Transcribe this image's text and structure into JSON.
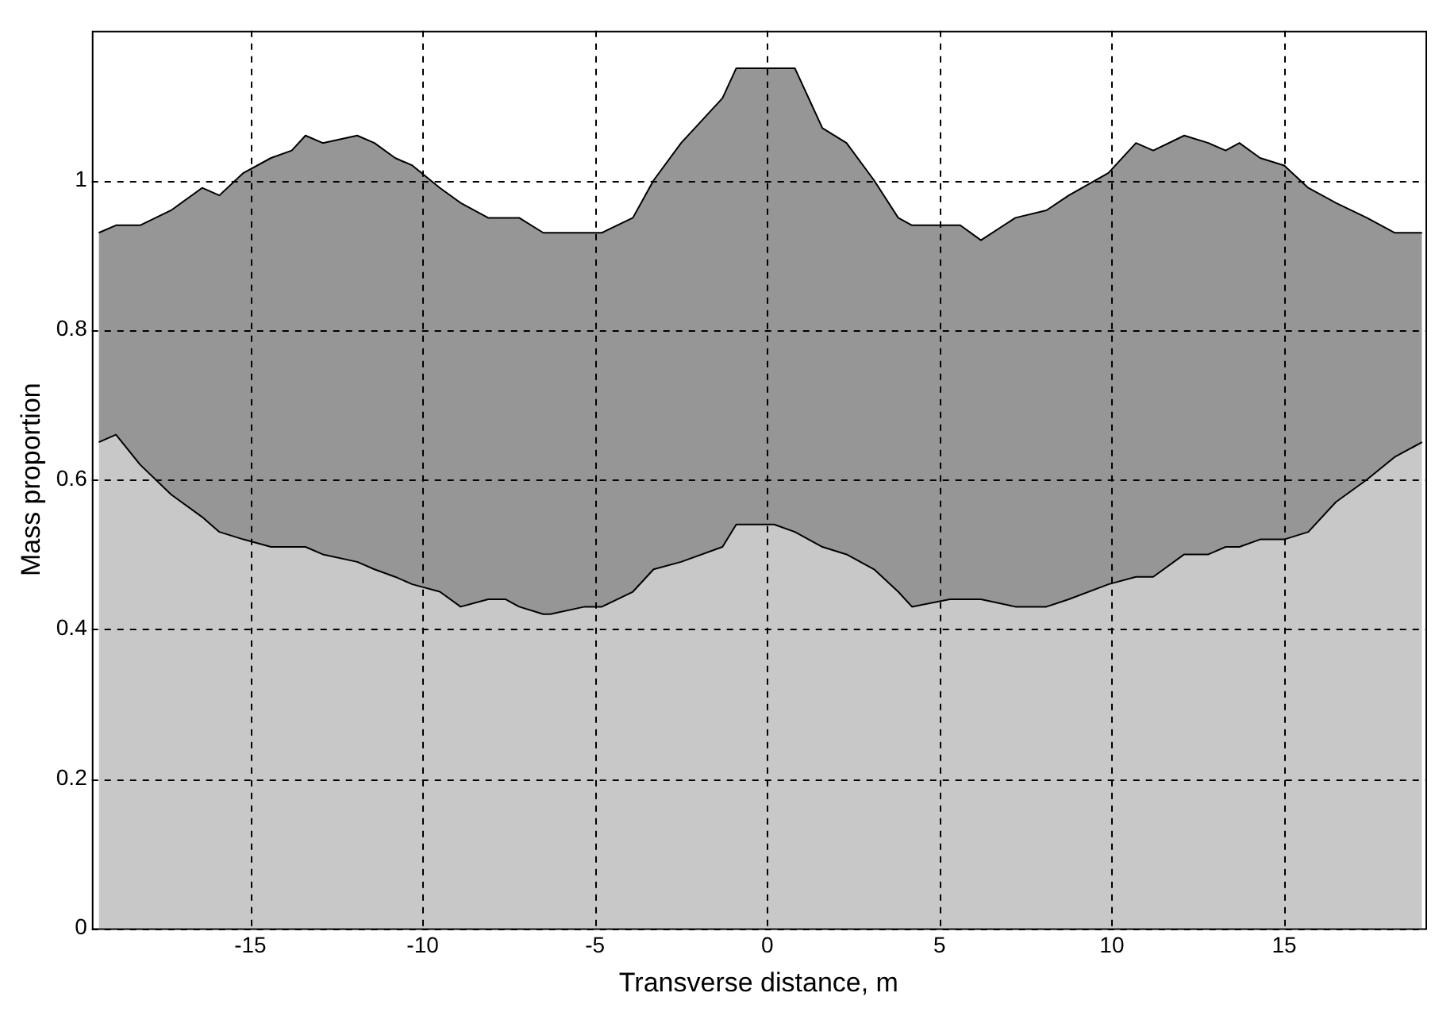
{
  "chart_data": {
    "type": "area",
    "xlabel": "Transverse distance, m",
    "ylabel": "Mass proportion",
    "xlim": [
      -19.6,
      19.1
    ],
    "ylim": [
      0,
      1.2
    ],
    "xticks": [
      -15,
      -10,
      -5,
      0,
      5,
      10,
      15
    ],
    "yticks": [
      0,
      0.2,
      0.4,
      0.6,
      0.8,
      1
    ],
    "grid": true,
    "legend": false,
    "stacked": true,
    "x": [
      -19.4,
      -18.9,
      -18.2,
      -17.3,
      -16.4,
      -15.9,
      -15.2,
      -14.4,
      -13.8,
      -13.4,
      -12.9,
      -11.9,
      -11.4,
      -10.8,
      -10.3,
      -9.5,
      -8.9,
      -8.1,
      -7.6,
      -7.2,
      -6.5,
      -6.3,
      -5.3,
      -4.8,
      -3.9,
      -3.3,
      -2.5,
      -1.3,
      -0.9,
      -0.25,
      0.2,
      0.8,
      1.6,
      2.3,
      3.1,
      3.8,
      4.2,
      5.3,
      5.6,
      6.2,
      7.2,
      8.1,
      8.75,
      9.9,
      10.7,
      11.2,
      12.1,
      12.8,
      13.3,
      13.7,
      14.3,
      15.0,
      15.7,
      16.5,
      17.4,
      18.2,
      19.0
    ],
    "series": [
      {
        "color": "#c8c8c8",
        "values": [
          0.65,
          0.66,
          0.62,
          0.58,
          0.55,
          0.53,
          0.52,
          0.51,
          0.51,
          0.51,
          0.5,
          0.49,
          0.48,
          0.47,
          0.46,
          0.45,
          0.43,
          0.44,
          0.44,
          0.43,
          0.42,
          0.42,
          0.43,
          0.43,
          0.45,
          0.48,
          0.49,
          0.51,
          0.54,
          0.54,
          0.54,
          0.53,
          0.51,
          0.5,
          0.48,
          0.45,
          0.43,
          0.44,
          0.44,
          0.44,
          0.43,
          0.43,
          0.44,
          0.46,
          0.47,
          0.47,
          0.5,
          0.5,
          0.51,
          0.51,
          0.52,
          0.52,
          0.53,
          0.57,
          0.6,
          0.63,
          0.65
        ]
      },
      {
        "color": "#969696",
        "values": [
          0.28,
          0.28,
          0.32,
          0.38,
          0.44,
          0.45,
          0.49,
          0.52,
          0.53,
          0.55,
          0.55,
          0.57,
          0.57,
          0.56,
          0.56,
          0.54,
          0.54,
          0.51,
          0.51,
          0.52,
          0.51,
          0.51,
          0.5,
          0.5,
          0.5,
          0.52,
          0.56,
          0.6,
          0.61,
          0.61,
          0.61,
          0.62,
          0.56,
          0.55,
          0.52,
          0.5,
          0.51,
          0.5,
          0.5,
          0.48,
          0.52,
          0.53,
          0.54,
          0.55,
          0.58,
          0.57,
          0.56,
          0.55,
          0.53,
          0.54,
          0.51,
          0.5,
          0.46,
          0.4,
          0.35,
          0.3,
          0.28
        ]
      }
    ]
  }
}
